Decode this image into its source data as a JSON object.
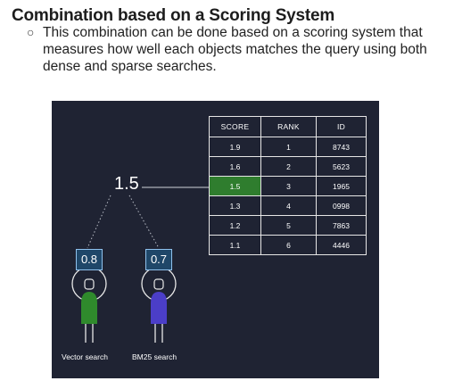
{
  "slide": {
    "title": "Combination based on a Scoring System",
    "bullet": "This combination can be done based on a scoring system that measures how well each objects matches the query using both dense and sparse searches."
  },
  "diagram": {
    "combined_score": "1.5",
    "highlight_color": "#2f7d2e",
    "table": {
      "headers": [
        "SCORE",
        "RANK",
        "ID"
      ],
      "rows": [
        [
          "1.9",
          "1",
          "8743"
        ],
        [
          "1.6",
          "2",
          "5623"
        ],
        [
          "1.5",
          "3",
          "1965"
        ],
        [
          "1.3",
          "4",
          "0998"
        ],
        [
          "1.2",
          "5",
          "7863"
        ],
        [
          "1.1",
          "6",
          "4446"
        ]
      ]
    },
    "searches": [
      {
        "score": "0.8",
        "label": "Vector search",
        "color": "#2f8a2c"
      },
      {
        "score": "0.7",
        "label": "BM25 search",
        "color": "#4b3ec8"
      }
    ]
  }
}
